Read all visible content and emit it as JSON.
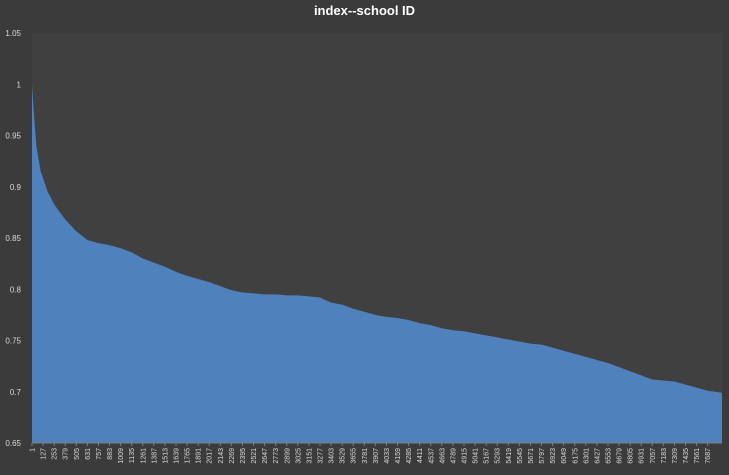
{
  "chart_data": {
    "type": "area",
    "title": "index--school ID",
    "xlabel": "",
    "ylabel": "",
    "ylim": [
      0.65,
      1.05
    ],
    "y_ticks": [
      "0.65",
      "0.7",
      "0.75",
      "0.8",
      "0.85",
      "0.9",
      "0.95",
      "1",
      "1.05"
    ],
    "x_tick_labels": [
      "1",
      "127",
      "253",
      "379",
      "505",
      "631",
      "757",
      "883",
      "1009",
      "1135",
      "1261",
      "1387",
      "1513",
      "1639",
      "1765",
      "1891",
      "2017",
      "2143",
      "2269",
      "2395",
      "2521",
      "2647",
      "2773",
      "2899",
      "3025",
      "3151",
      "3277",
      "3403",
      "3529",
      "3655",
      "3781",
      "3907",
      "4033",
      "4159",
      "4285",
      "4411",
      "4537",
      "4663",
      "4789",
      "4915",
      "5041",
      "5167",
      "5293",
      "5419",
      "5545",
      "5671",
      "5797",
      "5923",
      "6049",
      "6175",
      "6301",
      "6427",
      "6553",
      "6679",
      "6805",
      "6931",
      "7057",
      "7183",
      "7309",
      "7435",
      "7561",
      "7687"
    ],
    "x_max": 7850,
    "grid": false,
    "series_color": "#4f81bd",
    "plot_color": "#404040",
    "points": [
      [
        1,
        1.0
      ],
      [
        20,
        0.975
      ],
      [
        50,
        0.94
      ],
      [
        100,
        0.915
      ],
      [
        180,
        0.895
      ],
      [
        260,
        0.882
      ],
      [
        380,
        0.868
      ],
      [
        500,
        0.857
      ],
      [
        631,
        0.848
      ],
      [
        757,
        0.845
      ],
      [
        883,
        0.843
      ],
      [
        1009,
        0.84
      ],
      [
        1135,
        0.836
      ],
      [
        1261,
        0.83
      ],
      [
        1387,
        0.826
      ],
      [
        1513,
        0.822
      ],
      [
        1639,
        0.817
      ],
      [
        1765,
        0.813
      ],
      [
        1891,
        0.81
      ],
      [
        2017,
        0.807
      ],
      [
        2143,
        0.803
      ],
      [
        2269,
        0.799
      ],
      [
        2395,
        0.797
      ],
      [
        2521,
        0.796
      ],
      [
        2647,
        0.795
      ],
      [
        2773,
        0.795
      ],
      [
        2899,
        0.794
      ],
      [
        3025,
        0.794
      ],
      [
        3151,
        0.793
      ],
      [
        3277,
        0.792
      ],
      [
        3403,
        0.787
      ],
      [
        3529,
        0.785
      ],
      [
        3655,
        0.781
      ],
      [
        3781,
        0.778
      ],
      [
        3907,
        0.775
      ],
      [
        4033,
        0.773
      ],
      [
        4159,
        0.772
      ],
      [
        4285,
        0.77
      ],
      [
        4411,
        0.767
      ],
      [
        4537,
        0.765
      ],
      [
        4663,
        0.762
      ],
      [
        4789,
        0.76
      ],
      [
        4915,
        0.759
      ],
      [
        5041,
        0.757
      ],
      [
        5167,
        0.755
      ],
      [
        5293,
        0.753
      ],
      [
        5419,
        0.751
      ],
      [
        5545,
        0.749
      ],
      [
        5671,
        0.747
      ],
      [
        5797,
        0.746
      ],
      [
        5923,
        0.743
      ],
      [
        6049,
        0.74
      ],
      [
        6175,
        0.737
      ],
      [
        6301,
        0.734
      ],
      [
        6427,
        0.731
      ],
      [
        6553,
        0.728
      ],
      [
        6679,
        0.724
      ],
      [
        6805,
        0.72
      ],
      [
        6931,
        0.716
      ],
      [
        7057,
        0.712
      ],
      [
        7183,
        0.711
      ],
      [
        7309,
        0.71
      ],
      [
        7435,
        0.707
      ],
      [
        7561,
        0.704
      ],
      [
        7687,
        0.701
      ],
      [
        7850,
        0.699
      ]
    ]
  }
}
